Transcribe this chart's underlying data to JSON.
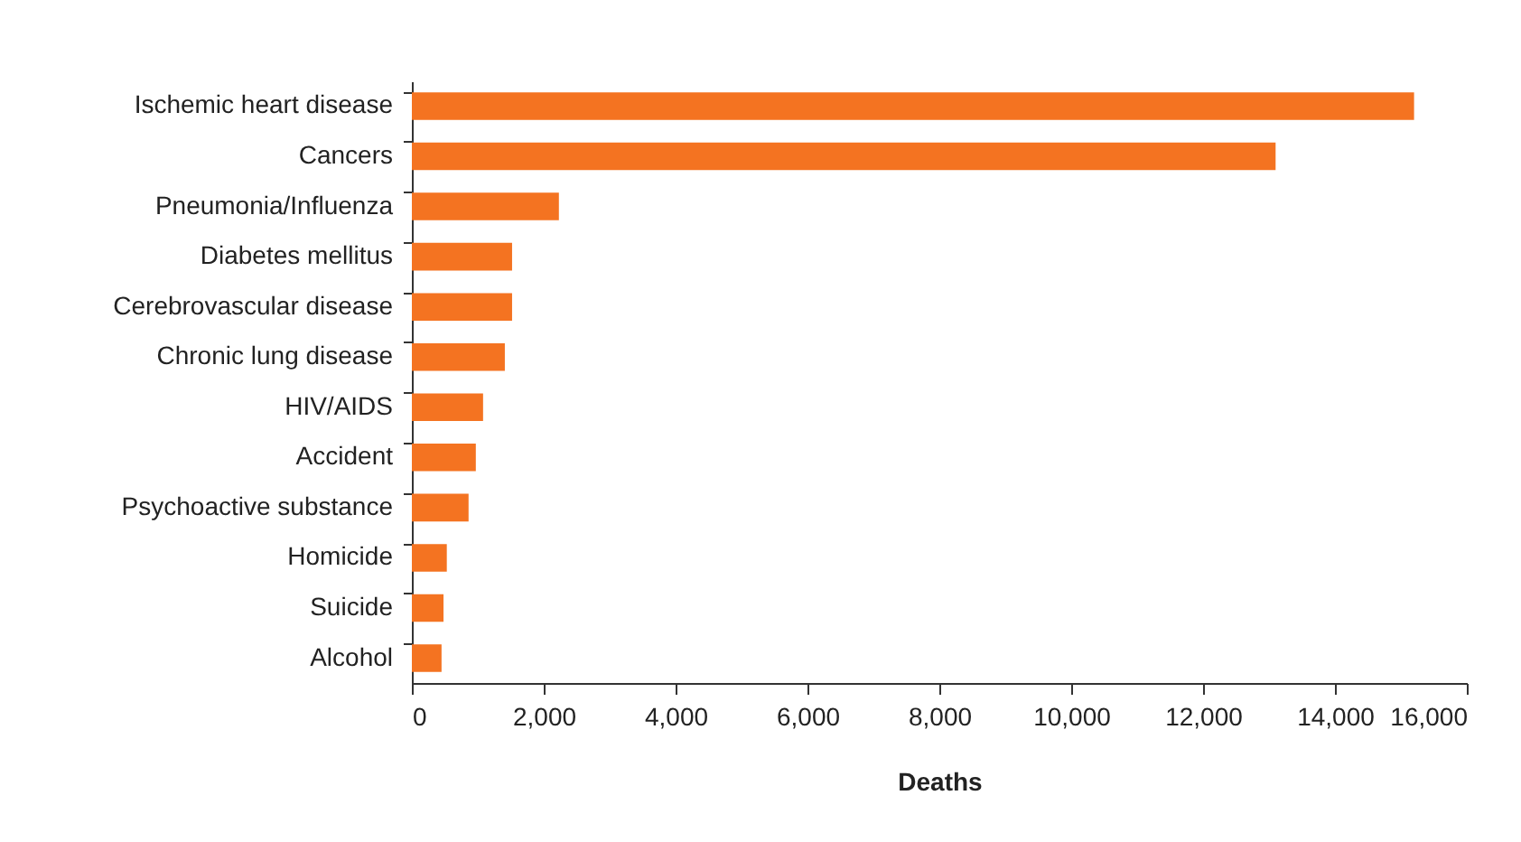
{
  "chart_data": {
    "type": "bar",
    "orientation": "horizontal",
    "xlabel": "Deaths",
    "categories": [
      "Ischemic heart disease",
      "Cancers",
      "Pneumonia/Influenza",
      "Diabetes mellitus",
      "Cerebrovascular disease",
      "Chronic lung disease",
      "HIV/AIDS",
      "Accident",
      "Psychoactive substance",
      "Homicide",
      "Suicide",
      "Alcohol"
    ],
    "values": [
      15200,
      13100,
      2230,
      1520,
      1520,
      1410,
      1080,
      970,
      860,
      530,
      480,
      450
    ],
    "color": "#f47321",
    "xlim": [
      0,
      16000
    ],
    "xticks": [
      0,
      {
        "value": 2000,
        "label": "2,000"
      },
      {
        "value": 4000,
        "label": "4,000"
      },
      {
        "value": 6000,
        "label": "6,000"
      },
      {
        "value": 8000,
        "label": "8,000"
      },
      {
        "value": 10000,
        "label": "10,000"
      },
      {
        "value": 12000,
        "label": "12,000"
      },
      {
        "value": 14000,
        "label": "14,000"
      },
      {
        "value": 16000,
        "label": "16,000"
      }
    ],
    "grid": false
  }
}
